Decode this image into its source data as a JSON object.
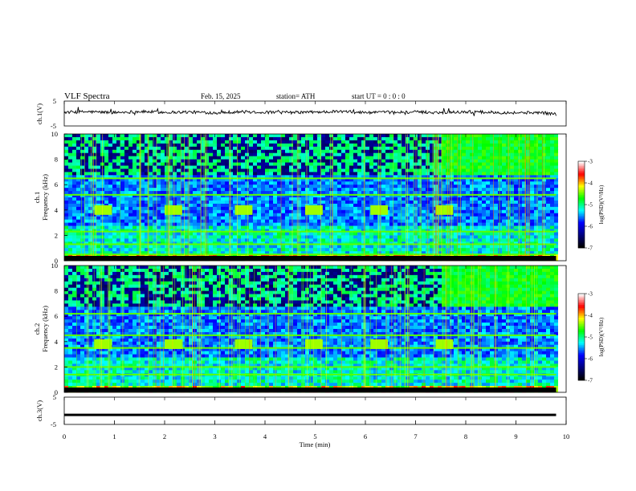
{
  "header": {
    "title": "VLF  Spectra",
    "date": "Feb. 15, 2025",
    "station": "station= ATH",
    "start_ut": "start  UT  =    0  : 0   : 0"
  },
  "colors": {
    "background": "#ffffff",
    "axis": "#000000",
    "trace": "#000000",
    "colormap": [
      "#ffffff",
      "#ff0000",
      "#ffff00",
      "#00ff00",
      "#00ffff",
      "#0000ff",
      "#000080",
      "#000000"
    ]
  },
  "chart_data": [
    {
      "type": "line",
      "title": "",
      "ylabel": "ch.1(V)",
      "ylim": [
        -5,
        5
      ],
      "yticks": [
        "5",
        "-5"
      ],
      "xlim": [
        0,
        10
      ],
      "x": [
        0,
        0.5,
        1,
        1.5,
        2,
        2.5,
        3,
        3.5,
        4,
        4.5,
        5,
        5.5,
        6,
        6.5,
        7,
        7.5,
        8,
        8.5,
        9,
        9.5,
        9.8
      ],
      "values": [
        0.5,
        0.7,
        0.4,
        0.8,
        0.5,
        0.6,
        0.3,
        0.7,
        0.5,
        0.4,
        0.6,
        0.8,
        0.4,
        0.5,
        0.6,
        0.4,
        0.7,
        0.5,
        0.3,
        0.4,
        -0.3
      ]
    },
    {
      "type": "heatmap",
      "title": "",
      "ylabel": "ch.1\nFrequency  (kHz)",
      "yticks": [
        "0",
        "2",
        "4",
        "6",
        "8",
        "10"
      ],
      "ylim": [
        0,
        10
      ],
      "xlim": [
        0,
        10
      ],
      "colorbar": {
        "label": "log(PSD)(V²/Hz)",
        "ticks": [
          "-3",
          "-4",
          "-5",
          "-6",
          "-7"
        ],
        "range": [
          -7,
          -3
        ]
      },
      "features": {
        "tone_bursts_khz": 4.0,
        "burst_times_min": [
          0.6,
          2.0,
          3.4,
          4.8,
          6.1,
          7.4
        ],
        "transmitter_lines_khz": [
          6.5,
          5.2,
          2.3,
          1.3,
          0.5
        ],
        "dark_gap_end_min": 7.5
      }
    },
    {
      "type": "heatmap",
      "title": "",
      "ylabel": "ch.2\nFrequency  (kHz)",
      "yticks": [
        "0",
        "2",
        "4",
        "6",
        "8",
        "10"
      ],
      "ylim": [
        0,
        10
      ],
      "xlim": [
        0,
        10
      ],
      "colorbar": {
        "label": "log(PSD)(V²/Hz)",
        "ticks": [
          "-3",
          "-4",
          "-5",
          "-6",
          "-7"
        ],
        "range": [
          -7,
          -3
        ]
      },
      "features": {
        "tone_bursts_khz": 3.8,
        "burst_times_min": [
          0.6,
          2.0,
          3.4,
          4.8,
          6.1,
          7.4
        ],
        "transmitter_lines_khz": [
          6.2,
          4.5,
          3.5,
          2.0,
          1.4
        ],
        "dark_gap_end_min": 7.5
      }
    },
    {
      "type": "line",
      "title": "",
      "ylabel": "ch.3(V)",
      "ylim": [
        -5,
        5
      ],
      "yticks": [
        "5",
        "-5"
      ],
      "xlim": [
        0,
        10
      ],
      "xlabel": "Time  (min)",
      "xticks": [
        "0",
        "1",
        "2",
        "3",
        "4",
        "5",
        "6",
        "7",
        "8",
        "9",
        "10"
      ],
      "x": [
        0,
        9.8
      ],
      "values": [
        -1.5,
        -1.5
      ]
    }
  ]
}
